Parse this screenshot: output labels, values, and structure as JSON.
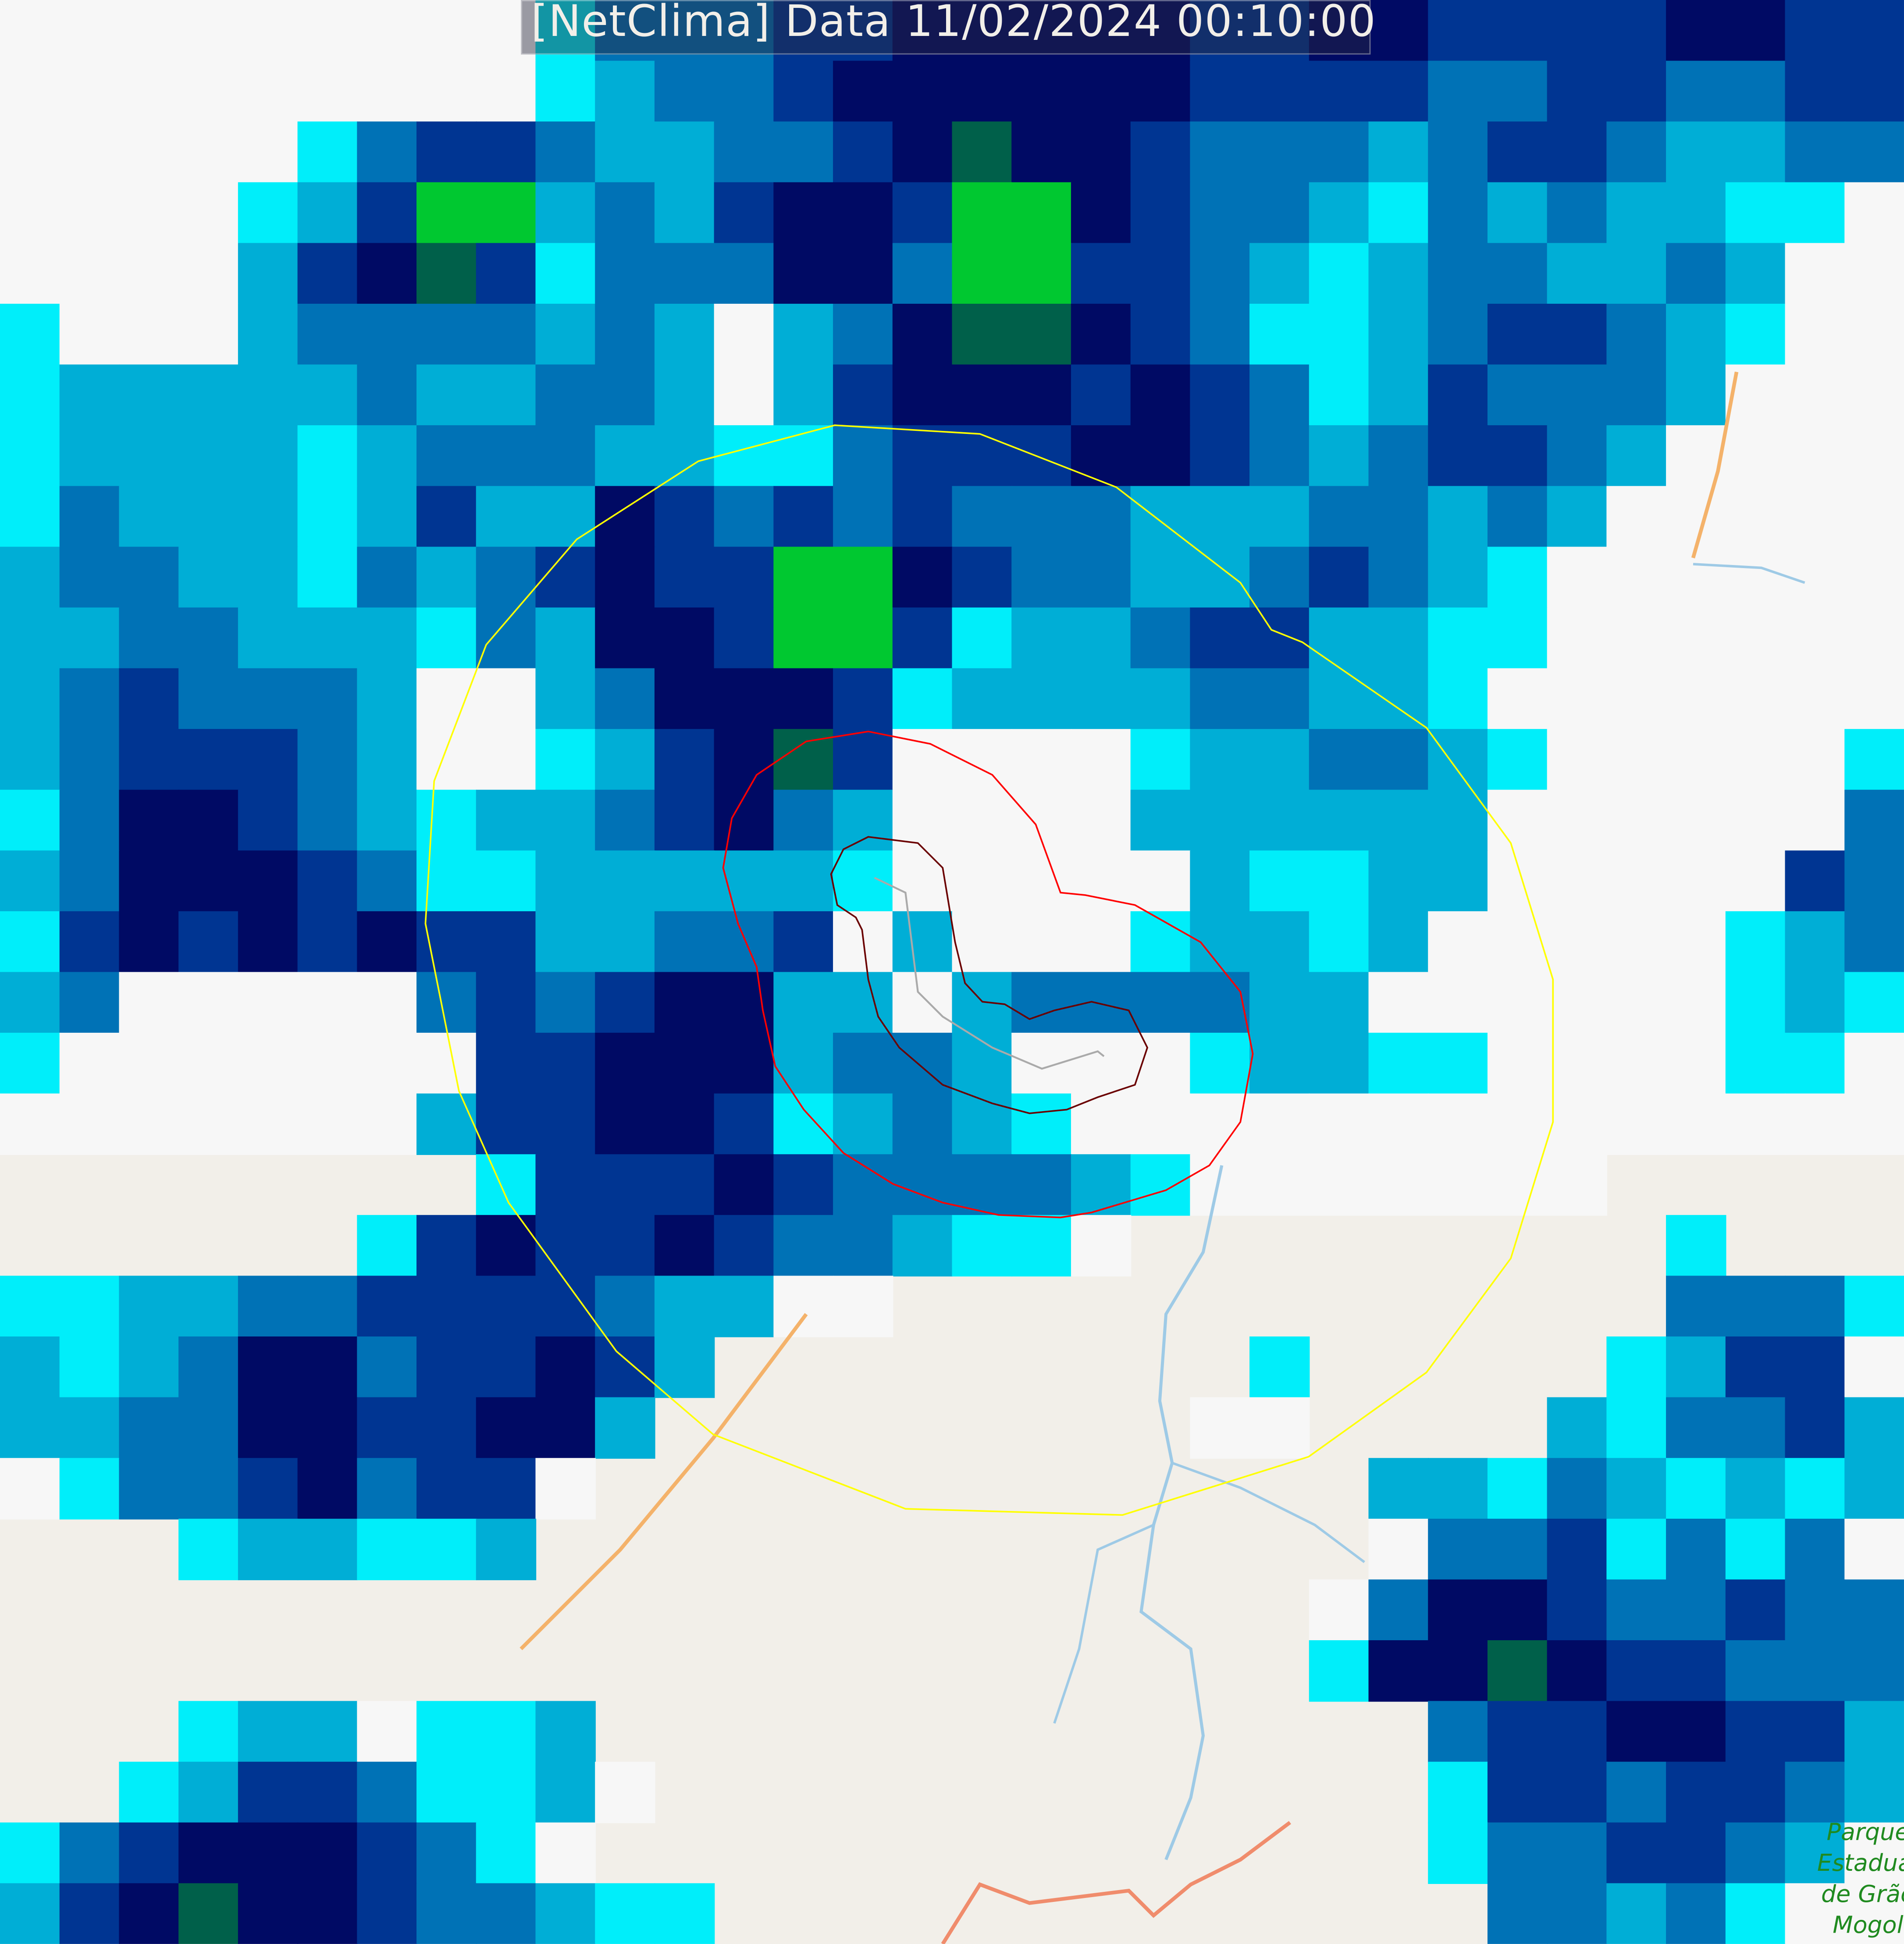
{
  "title": {
    "text": "[NetClima] Data 11/02/2024 00:10:00"
  },
  "map_labels": {
    "park": [
      "Parque",
      "Estadual",
      "de Grão",
      "Mogol"
    ]
  },
  "legend_colors": {
    "basemap": "#f2efe9",
    "white": "#f7f7f7",
    "cyan": "#00eefa",
    "light_blue": "#00aed6",
    "mid_blue": "#0072b6",
    "dark_blue": "#003592",
    "navy": "#000a64",
    "dark_green": "#00604a",
    "green": "#00c830",
    "outer_ring": "#ffff00",
    "inner_ring": "#ff0000",
    "core_outline": "#6a0000",
    "road": "#f4b26a",
    "road_secondary": "#f08c6c",
    "river": "#9ecae6"
  }
}
